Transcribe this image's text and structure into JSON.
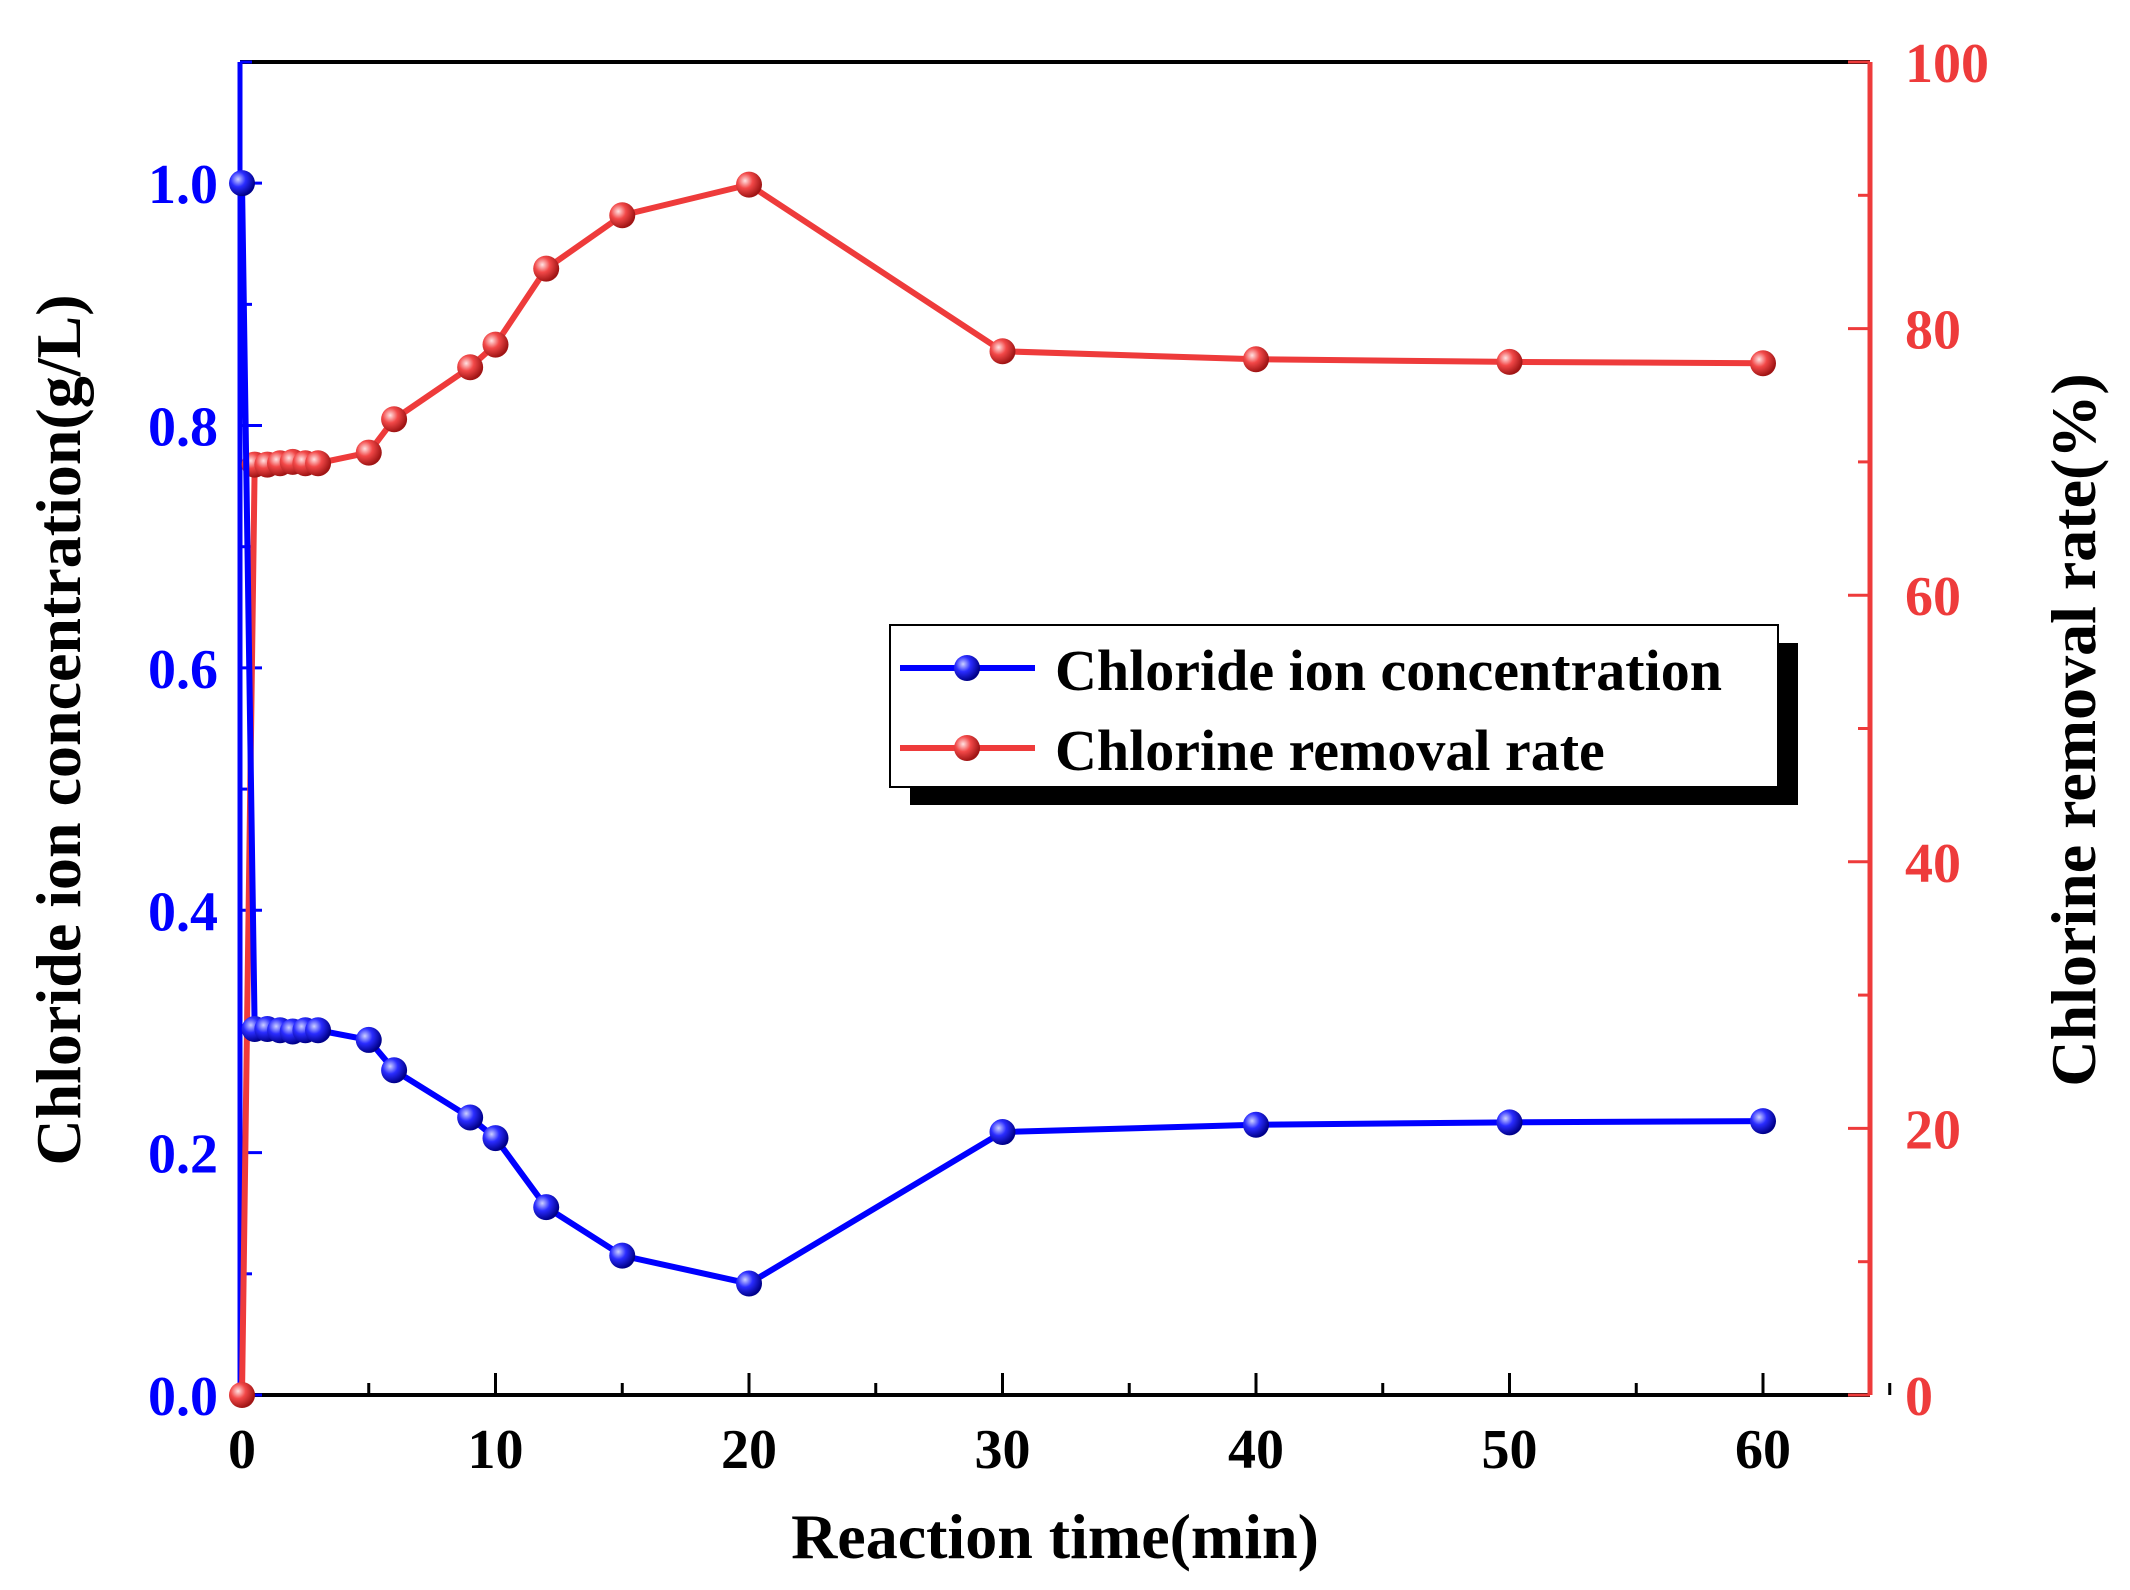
{
  "chart_data": {
    "type": "line",
    "xlabel": "Reaction time(min)",
    "ylabel_left": "Chloride ion concentration(g/L)",
    "ylabel_right": "Chlorine removal rate(%)",
    "xlim": [
      0,
      65
    ],
    "ylim_left": [
      0,
      1.1
    ],
    "ylim_right": [
      0,
      100
    ],
    "xticks": [
      "0",
      "10",
      "20",
      "30",
      "40",
      "50",
      "60"
    ],
    "yticks_left": [
      "0.0",
      "0.2",
      "0.4",
      "0.6",
      "0.8",
      "1.0"
    ],
    "yticks_right": [
      "0",
      "20",
      "40",
      "60",
      "80",
      "100"
    ],
    "legend_position": "center-right",
    "grid": false,
    "series": [
      {
        "name": "Chloride ion concentration",
        "axis": "left",
        "color": "#0000ff",
        "x": [
          0,
          0.5,
          1,
          1.5,
          2,
          2.5,
          3,
          5,
          6,
          9,
          10,
          12,
          15,
          20,
          30,
          40,
          50,
          60
        ],
        "y": [
          1.0,
          0.302,
          0.302,
          0.301,
          0.3,
          0.301,
          0.301,
          0.293,
          0.268,
          0.229,
          0.212,
          0.155,
          0.115,
          0.092,
          0.217,
          0.223,
          0.225,
          0.226
        ]
      },
      {
        "name": "Chlorine removal rate",
        "axis": "right",
        "color": "#ee3b3b",
        "x": [
          0,
          0.5,
          1,
          1.5,
          2,
          2.5,
          3,
          5,
          6,
          9,
          10,
          12,
          15,
          20,
          30,
          40,
          50,
          60
        ],
        "y": [
          0,
          69.8,
          69.8,
          69.9,
          70.0,
          69.9,
          69.9,
          70.7,
          73.2,
          77.1,
          78.8,
          84.5,
          88.5,
          90.8,
          78.3,
          77.7,
          77.5,
          77.4
        ]
      }
    ]
  }
}
